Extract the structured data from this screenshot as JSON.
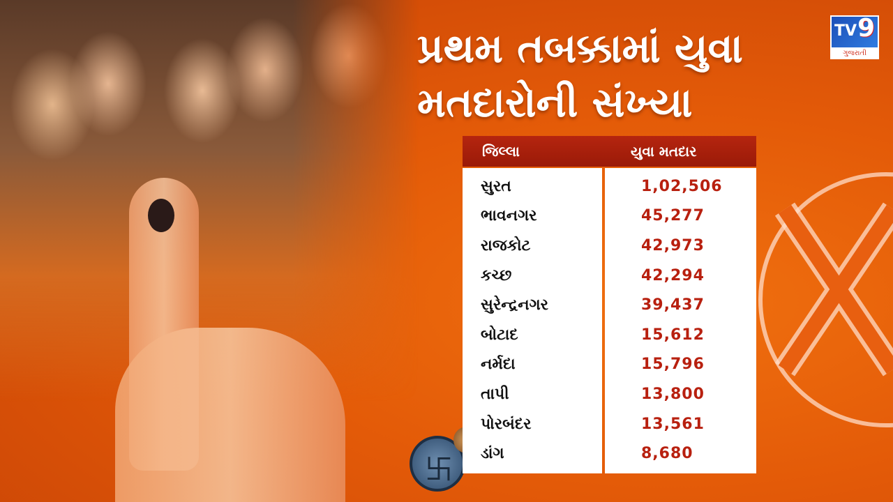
{
  "title": {
    "line1": "પ્રથમ તબક્કામાં યુવા",
    "line2": "મતદારોની સંખ્યા"
  },
  "logo": {
    "brand": "TV",
    "number": "9",
    "sub": "ગુજરાતી"
  },
  "table": {
    "headers": [
      "જિલ્લા",
      "યુવા મતદાર"
    ],
    "rows": [
      {
        "district": "સુરત",
        "voters": "1,02,506"
      },
      {
        "district": "ભાવનગર",
        "voters": "45,277"
      },
      {
        "district": "રાજકોટ",
        "voters": "42,973"
      },
      {
        "district": "કચ્છ",
        "voters": "42,294"
      },
      {
        "district": "સુરેન્દ્રનગર",
        "voters": "39,437"
      },
      {
        "district": "બોટાદ",
        "voters": "15,612"
      },
      {
        "district": "નર્મદા",
        "voters": "15,796"
      },
      {
        "district": "તાપી",
        "voters": "13,800"
      },
      {
        "district": "પોરબંદર",
        "voters": "13,561"
      },
      {
        "district": "ડાંગ",
        "voters": "8,680"
      }
    ]
  },
  "colors": {
    "background": "#e35a08",
    "header": "#a81f0b",
    "value_text": "#b8200f"
  }
}
